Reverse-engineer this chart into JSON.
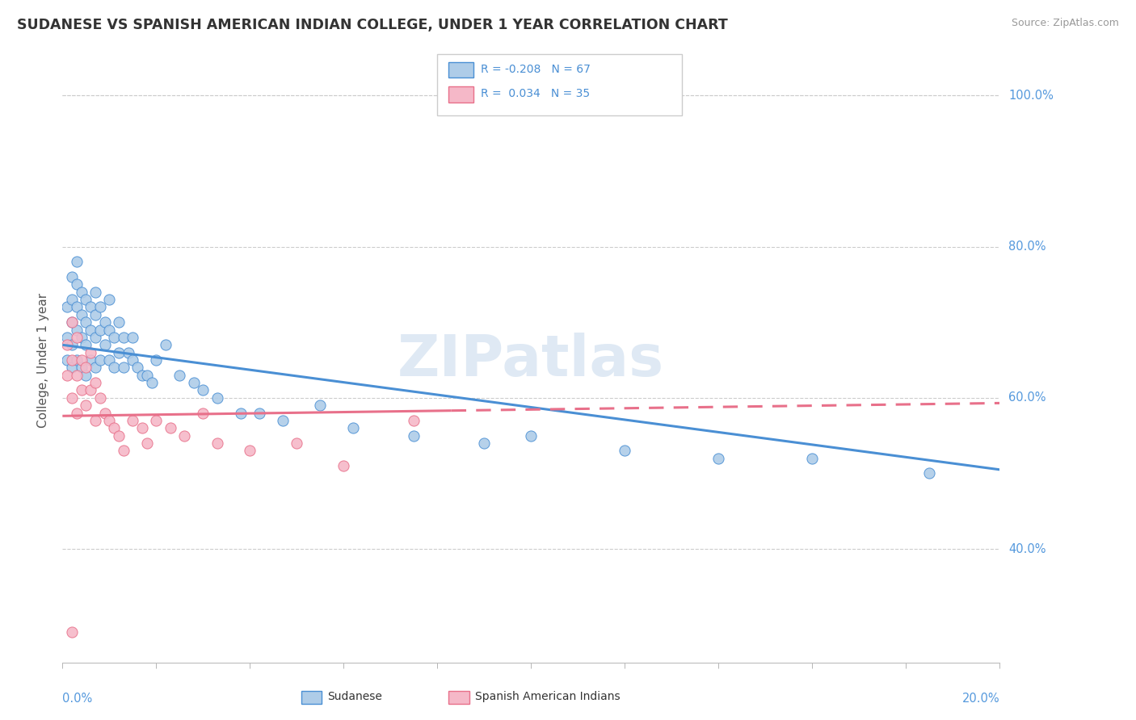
{
  "title": "SUDANESE VS SPANISH AMERICAN INDIAN COLLEGE, UNDER 1 YEAR CORRELATION CHART",
  "source": "Source: ZipAtlas.com",
  "ylabel": "College, Under 1 year",
  "ytick_labels": [
    "40.0%",
    "60.0%",
    "80.0%",
    "100.0%"
  ],
  "ytick_values": [
    0.4,
    0.6,
    0.8,
    1.0
  ],
  "xlim": [
    0.0,
    0.2
  ],
  "ylim": [
    0.25,
    1.05
  ],
  "r_sudanese": -0.208,
  "n_sudanese": 67,
  "r_spanish": 0.034,
  "n_spanish": 35,
  "sudanese_color": "#aecce8",
  "spanish_color": "#f5b8c8",
  "trend_blue": "#4a8fd4",
  "trend_pink": "#e8708a",
  "watermark": "ZIPatlas",
  "sudanese_x": [
    0.001,
    0.001,
    0.001,
    0.002,
    0.002,
    0.002,
    0.002,
    0.002,
    0.003,
    0.003,
    0.003,
    0.003,
    0.003,
    0.004,
    0.004,
    0.004,
    0.004,
    0.005,
    0.005,
    0.005,
    0.005,
    0.006,
    0.006,
    0.006,
    0.007,
    0.007,
    0.007,
    0.007,
    0.008,
    0.008,
    0.008,
    0.009,
    0.009,
    0.01,
    0.01,
    0.01,
    0.011,
    0.011,
    0.012,
    0.012,
    0.013,
    0.013,
    0.014,
    0.015,
    0.015,
    0.016,
    0.017,
    0.018,
    0.019,
    0.02,
    0.022,
    0.025,
    0.028,
    0.03,
    0.033,
    0.038,
    0.042,
    0.047,
    0.055,
    0.062,
    0.075,
    0.09,
    0.1,
    0.12,
    0.14,
    0.16,
    0.185
  ],
  "sudanese_y": [
    0.72,
    0.68,
    0.65,
    0.76,
    0.73,
    0.7,
    0.67,
    0.64,
    0.78,
    0.75,
    0.72,
    0.69,
    0.65,
    0.74,
    0.71,
    0.68,
    0.64,
    0.73,
    0.7,
    0.67,
    0.63,
    0.72,
    0.69,
    0.65,
    0.74,
    0.71,
    0.68,
    0.64,
    0.72,
    0.69,
    0.65,
    0.7,
    0.67,
    0.73,
    0.69,
    0.65,
    0.68,
    0.64,
    0.7,
    0.66,
    0.68,
    0.64,
    0.66,
    0.68,
    0.65,
    0.64,
    0.63,
    0.63,
    0.62,
    0.65,
    0.67,
    0.63,
    0.62,
    0.61,
    0.6,
    0.58,
    0.58,
    0.57,
    0.59,
    0.56,
    0.55,
    0.54,
    0.55,
    0.53,
    0.52,
    0.52,
    0.5
  ],
  "spanish_x": [
    0.001,
    0.001,
    0.002,
    0.002,
    0.002,
    0.003,
    0.003,
    0.003,
    0.004,
    0.004,
    0.005,
    0.005,
    0.006,
    0.006,
    0.007,
    0.007,
    0.008,
    0.009,
    0.01,
    0.011,
    0.012,
    0.013,
    0.015,
    0.017,
    0.018,
    0.02,
    0.023,
    0.026,
    0.03,
    0.033,
    0.04,
    0.05,
    0.06,
    0.075,
    0.002
  ],
  "spanish_y": [
    0.67,
    0.63,
    0.7,
    0.65,
    0.6,
    0.68,
    0.63,
    0.58,
    0.65,
    0.61,
    0.64,
    0.59,
    0.66,
    0.61,
    0.62,
    0.57,
    0.6,
    0.58,
    0.57,
    0.56,
    0.55,
    0.53,
    0.57,
    0.56,
    0.54,
    0.57,
    0.56,
    0.55,
    0.58,
    0.54,
    0.53,
    0.54,
    0.51,
    0.57,
    0.29
  ]
}
